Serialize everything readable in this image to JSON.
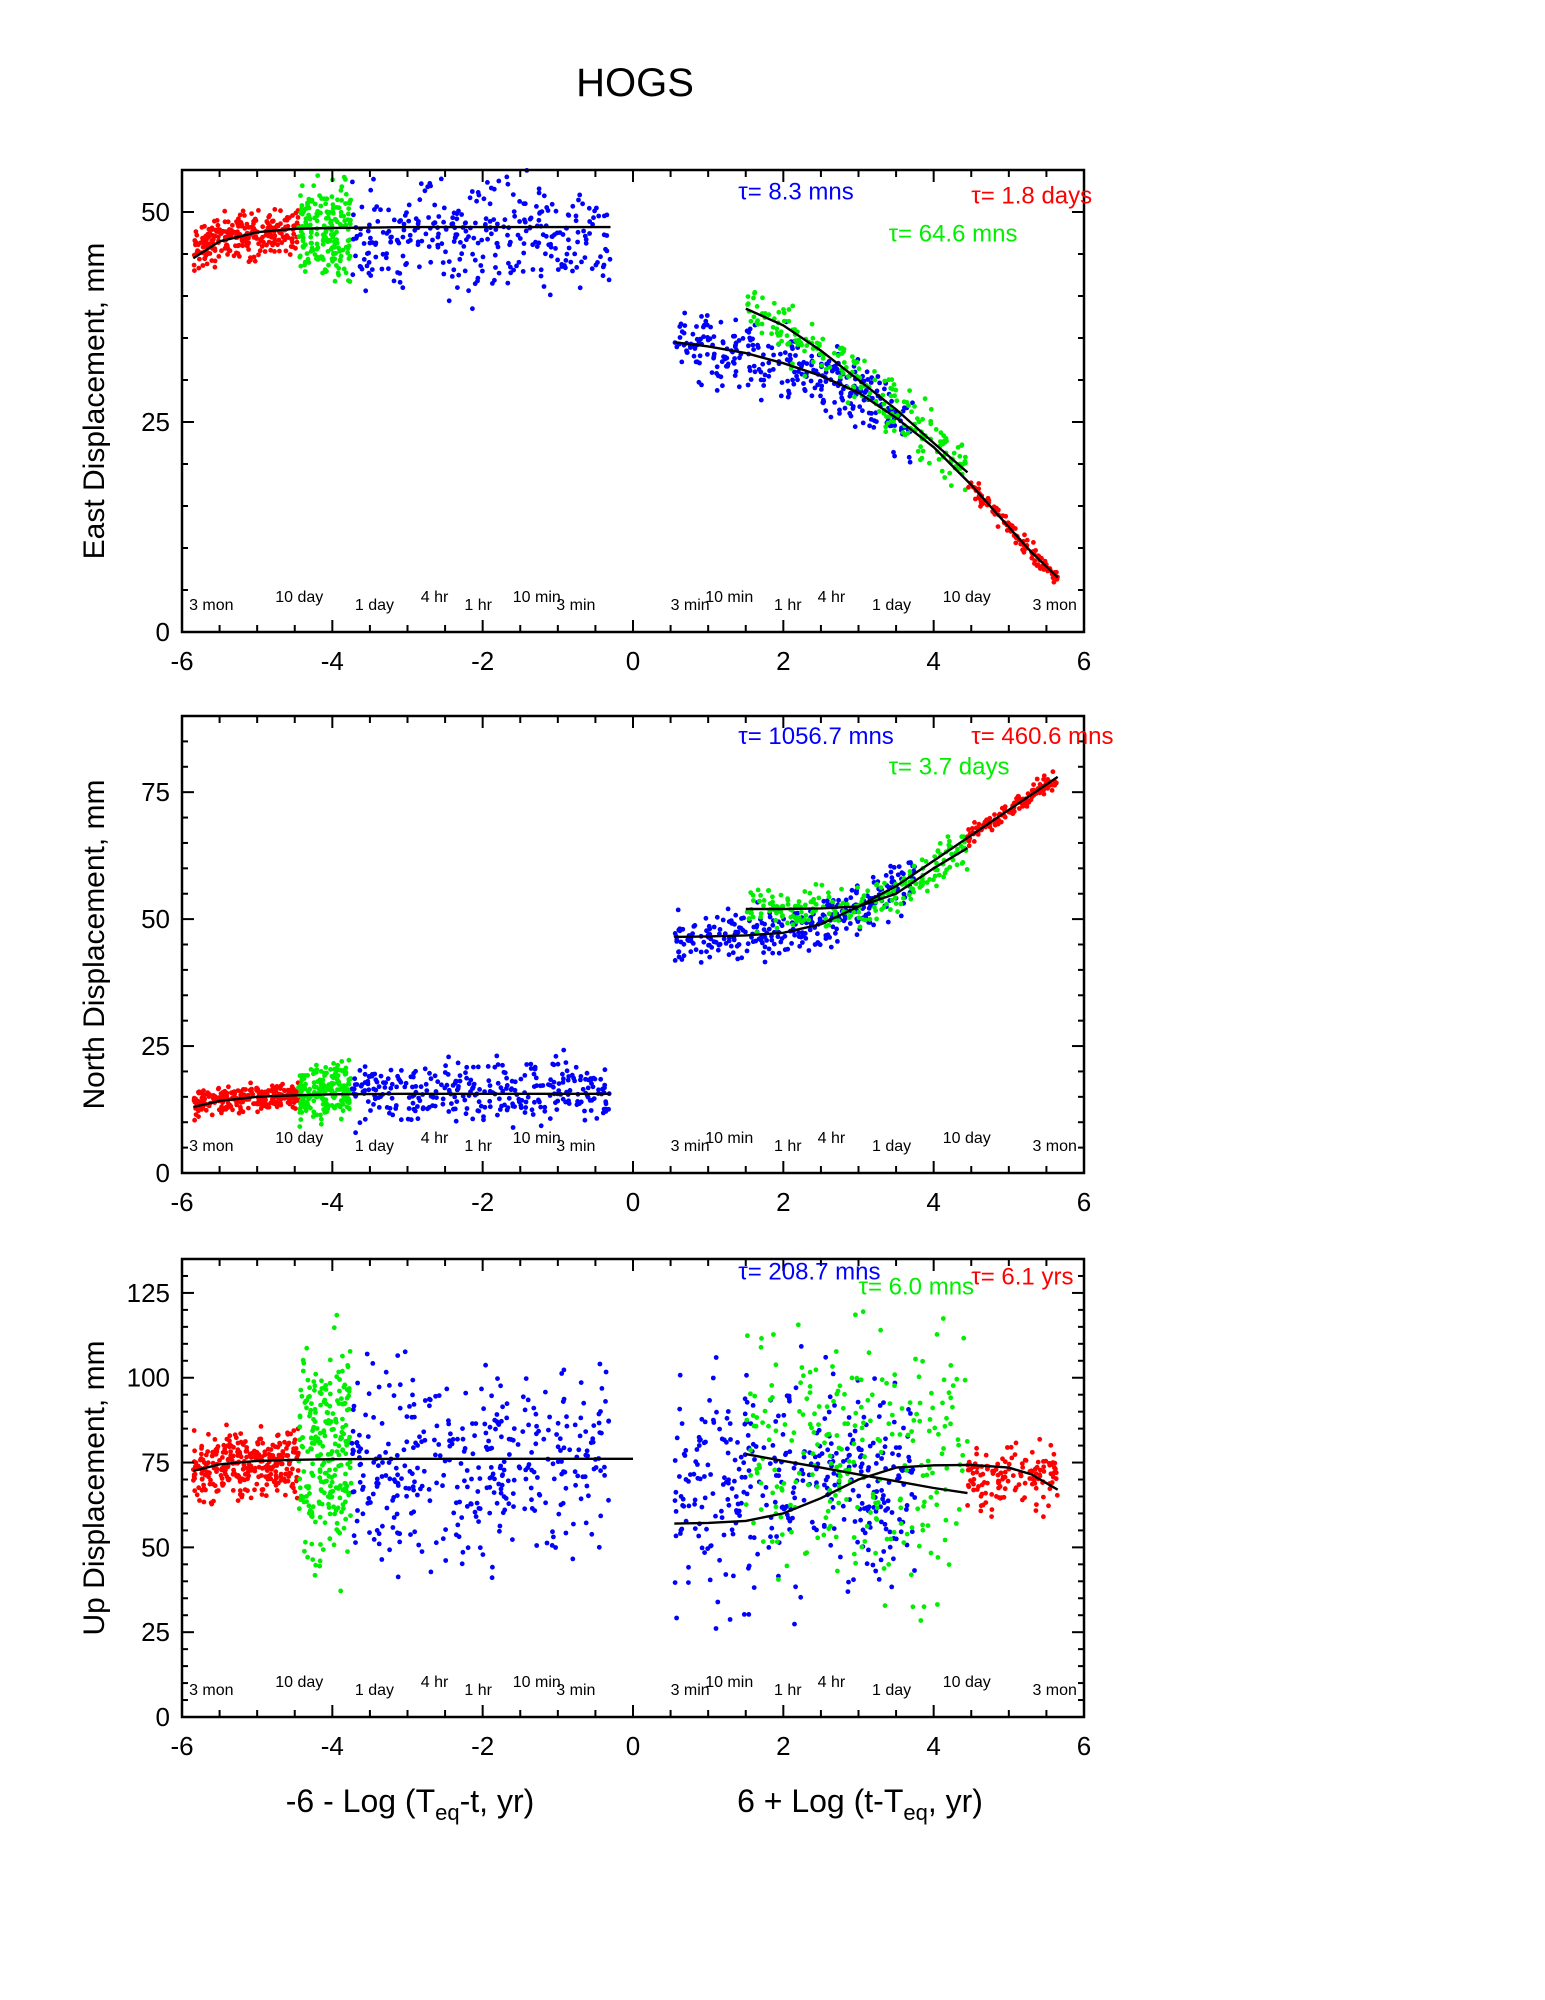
{
  "figure": {
    "title": "HOGS",
    "xlabel_left": "-6 - Log (T",
    "xlabel_left_sub": "eq",
    "xlabel_left_tail": "-t, yr)",
    "xlabel_right": "6 + Log (t-T",
    "xlabel_right_sub": "eq",
    "xlabel_right_tail": ", yr)"
  },
  "colors": {
    "red": "#ff0000",
    "green": "#00ee00",
    "blue": "#0000ff",
    "fit": "#000000"
  },
  "time_markers": {
    "left": [
      {
        "label": "3 mon",
        "x": -5.61
      },
      {
        "label": "10 day",
        "x": -4.44
      },
      {
        "label": "1 day",
        "x": -3.44
      },
      {
        "label": "4 hr",
        "x": -2.64
      },
      {
        "label": "1 hr",
        "x": -2.06
      },
      {
        "label": "10 min",
        "x": -1.28
      },
      {
        "label": "3 min",
        "x": -0.76
      }
    ],
    "right": [
      {
        "label": "3 min",
        "x": 0.76
      },
      {
        "label": "10 min",
        "x": 1.28
      },
      {
        "label": "1 hr",
        "x": 2.06
      },
      {
        "label": "4 hr",
        "x": 2.64
      },
      {
        "label": "1 day",
        "x": 3.44
      },
      {
        "label": "10 day",
        "x": 4.44
      },
      {
        "label": "3 mon",
        "x": 5.61
      }
    ]
  },
  "chart_data": [
    {
      "type": "scatter",
      "title": "",
      "ylabel": "East Displacement, mm",
      "xlim": [
        -6,
        6
      ],
      "ylim": [
        0,
        55
      ],
      "x_ticks": [
        -6,
        -4,
        -2,
        0,
        2,
        4,
        6
      ],
      "y_ticks": [
        0,
        25,
        50
      ],
      "annotations": [
        {
          "text": "τ= 8.3 mns",
          "color": "blue",
          "x": 1.4,
          "y": 51.5
        },
        {
          "text": "τ= 1.8 days",
          "color": "red",
          "x": 4.5,
          "y": 51
        },
        {
          "text": "τ= 64.6 mns",
          "color": "green",
          "x": 3.4,
          "y": 46.5
        }
      ],
      "series": [
        {
          "color": "red",
          "side": "pre",
          "x_range": [
            -5.85,
            -4.45
          ],
          "y_center": 47.0,
          "y_spread": 4.0,
          "n": 260
        },
        {
          "color": "green",
          "side": "pre",
          "x_range": [
            -4.45,
            -3.75
          ],
          "y_center": 48.0,
          "y_spread": 8.0,
          "n": 200
        },
        {
          "color": "blue",
          "side": "pre",
          "x_range": [
            -3.75,
            -0.3
          ],
          "y_center": 47.0,
          "y_spread": 9.0,
          "n": 320
        },
        {
          "color": "blue",
          "side": "post",
          "x_range": [
            0.55,
            3.75
          ],
          "y_center": null,
          "y_spread": 6.0,
          "n": 320
        },
        {
          "color": "green",
          "side": "post",
          "x_range": [
            1.5,
            4.45
          ],
          "y_center": null,
          "y_spread": 5.0,
          "n": 220
        },
        {
          "color": "red",
          "side": "post",
          "x_range": [
            4.45,
            5.65
          ],
          "y_center": null,
          "y_spread": 1.5,
          "n": 120
        }
      ],
      "fits": [
        {
          "x": [
            -5.85,
            -5.5,
            -5.0,
            -4.5,
            -4.0,
            -3.0,
            -2.0,
            -1.0,
            -0.3
          ],
          "y": [
            44.5,
            46.5,
            47.6,
            48.0,
            48.1,
            48.2,
            48.2,
            48.2,
            48.2
          ]
        },
        {
          "x": [
            0.55,
            1.0,
            1.5,
            2.0,
            2.5,
            3.0,
            3.5,
            4.0,
            4.5,
            5.0,
            5.3,
            5.65
          ],
          "y": [
            34.5,
            34.0,
            33.2,
            32.0,
            30.5,
            28.5,
            25.5,
            22.0,
            17.5,
            12.5,
            9.5,
            6.5
          ]
        },
        {
          "x": [
            1.5,
            2.0,
            2.5,
            3.0,
            3.5,
            4.0,
            4.45
          ],
          "y": [
            38.5,
            36.5,
            33.5,
            30.0,
            26.5,
            22.5,
            19.0
          ]
        }
      ]
    },
    {
      "type": "scatter",
      "title": "",
      "ylabel": "North Displacement, mm",
      "xlim": [
        -6,
        6
      ],
      "ylim": [
        0,
        90
      ],
      "x_ticks": [
        -6,
        -4,
        -2,
        0,
        2,
        4,
        6
      ],
      "y_ticks": [
        0,
        25,
        50,
        75
      ],
      "annotations": [
        {
          "text": "τ= 1056.7 mns",
          "color": "blue",
          "x": 1.4,
          "y": 84.5
        },
        {
          "text": "τ= 460.6 mns",
          "color": "red",
          "x": 4.5,
          "y": 84.5
        },
        {
          "text": "τ= 3.7 days",
          "color": "green",
          "x": 3.4,
          "y": 78.5
        }
      ],
      "series": [
        {
          "color": "red",
          "side": "pre",
          "x_range": [
            -5.85,
            -4.45
          ],
          "y_center": 14.5,
          "y_spread": 4.0,
          "n": 240
        },
        {
          "color": "green",
          "side": "pre",
          "x_range": [
            -4.45,
            -3.75
          ],
          "y_center": 16.0,
          "y_spread": 8.0,
          "n": 200
        },
        {
          "color": "blue",
          "side": "pre",
          "x_range": [
            -3.75,
            -0.3
          ],
          "y_center": 16.0,
          "y_spread": 9.0,
          "n": 320
        },
        {
          "color": "blue",
          "side": "post",
          "x_range": [
            0.55,
            3.75
          ],
          "y_center": null,
          "y_spread": 7.0,
          "n": 320
        },
        {
          "color": "green",
          "side": "post",
          "x_range": [
            1.5,
            4.45
          ],
          "y_center": null,
          "y_spread": 6.0,
          "n": 220
        },
        {
          "color": "red",
          "side": "post",
          "x_range": [
            4.45,
            5.65
          ],
          "y_center": null,
          "y_spread": 2.5,
          "n": 130
        }
      ],
      "fits": [
        {
          "x": [
            -5.85,
            -5.5,
            -5.0,
            -4.5,
            -4.0,
            -3.0,
            -2.0,
            -1.0,
            -0.3
          ],
          "y": [
            13.0,
            14.2,
            15.0,
            15.3,
            15.5,
            15.6,
            15.6,
            15.6,
            15.6
          ]
        },
        {
          "x": [
            0.55,
            1.0,
            1.5,
            2.0,
            2.5,
            3.0,
            3.5,
            4.0,
            4.5,
            5.0,
            5.3,
            5.65
          ],
          "y": [
            46.5,
            46.6,
            46.8,
            47.3,
            49.0,
            52.5,
            56.5,
            61.5,
            66.5,
            71.5,
            74.5,
            78.0
          ]
        },
        {
          "x": [
            1.5,
            2.0,
            2.5,
            3.0,
            3.5,
            4.0,
            4.45
          ],
          "y": [
            52.0,
            52.0,
            52.1,
            52.5,
            55.0,
            60.0,
            64.0
          ]
        }
      ]
    },
    {
      "type": "scatter",
      "title": "",
      "ylabel": "Up Displacement, mm",
      "xlim": [
        -6,
        6
      ],
      "ylim": [
        0,
        135
      ],
      "x_ticks": [
        -6,
        -4,
        -2,
        0,
        2,
        4,
        6
      ],
      "y_ticks": [
        0,
        25,
        50,
        75,
        100,
        125
      ],
      "annotations": [
        {
          "text": "τ= 208.7 mns",
          "color": "blue",
          "x": 1.4,
          "y": 129
        },
        {
          "text": "τ= 6.1 yrs",
          "color": "red",
          "x": 4.5,
          "y": 127.5
        },
        {
          "text": "τ= 6.0 mns",
          "color": "green",
          "x": 3.0,
          "y": 124.5
        }
      ],
      "series": [
        {
          "color": "red",
          "side": "pre",
          "x_range": [
            -5.85,
            -4.45
          ],
          "y_center": 74.0,
          "y_spread": 14.0,
          "n": 300
        },
        {
          "color": "green",
          "side": "pre",
          "x_range": [
            -4.45,
            -3.75
          ],
          "y_center": 78.0,
          "y_spread": 50.0,
          "n": 260
        },
        {
          "color": "blue",
          "side": "pre",
          "x_range": [
            -3.75,
            -0.3
          ],
          "y_center": 75.0,
          "y_spread": 42.0,
          "n": 380
        },
        {
          "color": "blue",
          "side": "post",
          "x_range": [
            0.55,
            3.75
          ],
          "y_center": 68.0,
          "y_spread": 48.0,
          "n": 380
        },
        {
          "color": "green",
          "side": "post",
          "x_range": [
            1.5,
            4.45
          ],
          "y_center": 75.0,
          "y_spread": 55.0,
          "n": 260
        },
        {
          "color": "red",
          "side": "post",
          "x_range": [
            4.45,
            5.65
          ],
          "y_center": 71.0,
          "y_spread": 14.0,
          "n": 140
        }
      ],
      "fits": [
        {
          "x": [
            -5.85,
            -5.5,
            -5.0,
            -4.5,
            -4.0,
            -3.0,
            -2.0,
            -1.0,
            0.0
          ],
          "y": [
            72.5,
            74.5,
            75.5,
            75.8,
            76.0,
            76.1,
            76.1,
            76.1,
            76.1
          ]
        },
        {
          "x": [
            0.55,
            1.0,
            1.5,
            2.0,
            2.5,
            3.0,
            3.5,
            4.0,
            4.5,
            5.0,
            5.3,
            5.65
          ],
          "y": [
            57.0,
            57.2,
            57.8,
            60.0,
            64.5,
            70.0,
            73.5,
            74.2,
            74.3,
            73.5,
            71.5,
            67.0
          ]
        },
        {
          "x": [
            1.5,
            2.0,
            2.5,
            3.0,
            3.5,
            4.0,
            4.45
          ],
          "y": [
            77.5,
            75.5,
            73.5,
            71.5,
            69.5,
            67.5,
            66.0
          ]
        }
      ]
    }
  ]
}
